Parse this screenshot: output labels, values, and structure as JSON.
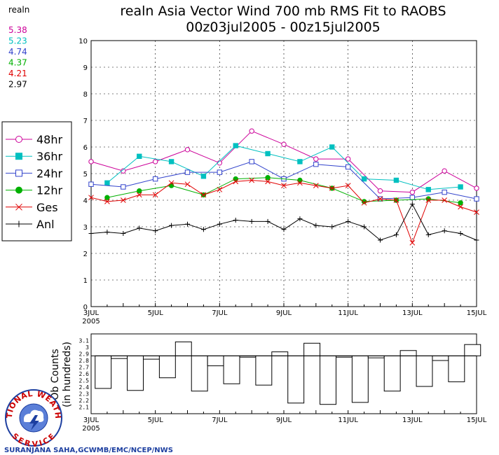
{
  "title": {
    "line1": "realn Asia Vector Wind 700 mb RMS Fit to RAOBS",
    "line2": "00z03jul2005 - 00z15jul2005"
  },
  "stats": {
    "header": "realn",
    "values": [
      {
        "text": "5.38",
        "color": "#cc0099"
      },
      {
        "text": "5.23",
        "color": "#00c0c0"
      },
      {
        "text": "4.74",
        "color": "#3344cc"
      },
      {
        "text": "4.37",
        "color": "#00b000"
      },
      {
        "text": "4.21",
        "color": "#e00000"
      },
      {
        "text": "2.97",
        "color": "#000000"
      }
    ]
  },
  "legend": [
    {
      "label": "48hr",
      "color": "#cc0099",
      "marker": "circle-open"
    },
    {
      "label": "36hr",
      "color": "#00c0c0",
      "marker": "square-filled"
    },
    {
      "label": "24hr",
      "color": "#3344cc",
      "marker": "square-open"
    },
    {
      "label": "12hr",
      "color": "#00b000",
      "marker": "circle-filled"
    },
    {
      "label": "Ges",
      "color": "#e00000",
      "marker": "x"
    },
    {
      "label": "Anl",
      "color": "#000000",
      "marker": "plus"
    }
  ],
  "credit": "SURANJANA SAHA,GCWMB/EMC/NCEP/NWS",
  "logo": {
    "top_text": "NATIONAL WEATHER",
    "bottom_text": "SERVICE"
  },
  "lower_panel": {
    "ylabel_lines": [
      "Ob Counts",
      "(in hundreds)"
    ]
  },
  "chart_data": [
    {
      "type": "line",
      "xlim": [
        0,
        12
      ],
      "ylim": [
        0,
        10
      ],
      "yticks": [
        0,
        1,
        2,
        3,
        4,
        5,
        6,
        7,
        8,
        9,
        10
      ],
      "xtick_labels": [
        {
          "x": 0,
          "label": "3JUL",
          "sub": "2005"
        },
        {
          "x": 2,
          "label": "5JUL"
        },
        {
          "x": 4,
          "label": "7JUL"
        },
        {
          "x": 6,
          "label": "9JUL"
        },
        {
          "x": 8,
          "label": "11JUL"
        },
        {
          "x": 10,
          "label": "13JUL"
        },
        {
          "x": 12,
          "label": "15JUL"
        }
      ],
      "grid": true,
      "series": [
        {
          "name": "48hr",
          "color": "#cc0099",
          "marker": "circle-open",
          "points": [
            [
              0,
              5.45
            ],
            [
              1,
              5.1
            ],
            [
              2,
              5.45
            ],
            [
              3,
              5.9
            ],
            [
              4,
              5.4
            ],
            [
              5,
              6.6
            ],
            [
              6,
              6.1
            ],
            [
              7,
              5.55
            ],
            [
              8,
              5.55
            ],
            [
              9,
              4.35
            ],
            [
              10,
              4.3
            ],
            [
              11,
              5.1
            ],
            [
              12,
              4.45
            ]
          ]
        },
        {
          "name": "36hr",
          "color": "#00c0c0",
          "marker": "square-filled",
          "points": [
            [
              0.5,
              4.65
            ],
            [
              1.5,
              5.65
            ],
            [
              2.5,
              5.45
            ],
            [
              3.5,
              4.9
            ],
            [
              4.5,
              6.05
            ],
            [
              5.5,
              5.75
            ],
            [
              6.5,
              5.45
            ],
            [
              7.5,
              6.0
            ],
            [
              8.5,
              4.8
            ],
            [
              9.5,
              4.75
            ],
            [
              10.5,
              4.4
            ],
            [
              11.5,
              4.5
            ]
          ]
        },
        {
          "name": "24hr",
          "color": "#3344cc",
          "marker": "square-open",
          "points": [
            [
              0,
              4.6
            ],
            [
              1,
              4.5
            ],
            [
              2,
              4.8
            ],
            [
              3,
              5.05
            ],
            [
              4,
              5.05
            ],
            [
              5,
              5.45
            ],
            [
              6,
              4.8
            ],
            [
              7,
              5.35
            ],
            [
              8,
              5.25
            ],
            [
              9,
              4.05
            ],
            [
              10,
              4.1
            ],
            [
              11,
              4.3
            ],
            [
              12,
              4.05
            ]
          ]
        },
        {
          "name": "12hr",
          "color": "#00b000",
          "marker": "circle-filled",
          "points": [
            [
              0.5,
              4.1
            ],
            [
              1.5,
              4.35
            ],
            [
              2.5,
              4.55
            ],
            [
              3.5,
              4.2
            ],
            [
              4.5,
              4.8
            ],
            [
              5.5,
              4.85
            ],
            [
              6.5,
              4.75
            ],
            [
              7.5,
              4.45
            ],
            [
              8.5,
              3.95
            ],
            [
              9.5,
              4.0
            ],
            [
              10.5,
              4.05
            ],
            [
              11.5,
              3.9
            ]
          ]
        },
        {
          "name": "Ges",
          "color": "#e00000",
          "marker": "x",
          "points": [
            [
              0,
              4.1
            ],
            [
              0.5,
              3.95
            ],
            [
              1,
              4.0
            ],
            [
              1.5,
              4.2
            ],
            [
              2,
              4.2
            ],
            [
              2.5,
              4.65
            ],
            [
              3,
              4.6
            ],
            [
              3.5,
              4.2
            ],
            [
              4,
              4.4
            ],
            [
              4.5,
              4.7
            ],
            [
              5,
              4.75
            ],
            [
              5.5,
              4.7
            ],
            [
              6,
              4.55
            ],
            [
              6.5,
              4.65
            ],
            [
              7,
              4.55
            ],
            [
              7.5,
              4.45
            ],
            [
              8,
              4.55
            ],
            [
              8.5,
              3.9
            ],
            [
              9,
              4.05
            ],
            [
              9.5,
              4.0
            ],
            [
              10,
              2.4
            ],
            [
              10.5,
              4.0
            ],
            [
              11,
              4.0
            ],
            [
              11.5,
              3.75
            ],
            [
              12,
              3.55
            ]
          ]
        },
        {
          "name": "Anl",
          "color": "#000000",
          "marker": "plus",
          "points": [
            [
              0,
              2.75
            ],
            [
              0.5,
              2.8
            ],
            [
              1,
              2.75
            ],
            [
              1.5,
              2.95
            ],
            [
              2,
              2.85
            ],
            [
              2.5,
              3.05
            ],
            [
              3,
              3.1
            ],
            [
              3.5,
              2.9
            ],
            [
              4,
              3.1
            ],
            [
              4.5,
              3.25
            ],
            [
              5,
              3.2
            ],
            [
              5.5,
              3.2
            ],
            [
              6,
              2.9
            ],
            [
              6.5,
              3.3
            ],
            [
              7,
              3.05
            ],
            [
              7.5,
              3.0
            ],
            [
              8,
              3.2
            ],
            [
              8.5,
              3.0
            ],
            [
              9,
              2.5
            ],
            [
              9.5,
              2.7
            ],
            [
              10,
              3.85
            ],
            [
              10.5,
              2.7
            ],
            [
              11,
              2.85
            ],
            [
              11.5,
              2.75
            ],
            [
              12,
              2.5
            ]
          ]
        }
      ]
    },
    {
      "type": "bar",
      "xlim": [
        0,
        12
      ],
      "ylim": [
        2.0,
        3.2
      ],
      "yticks": [
        2.1,
        2.2,
        2.3,
        2.4,
        2.5,
        2.6,
        2.7,
        2.8,
        2.9,
        3.0,
        3.1
      ],
      "xtick_labels": [
        {
          "x": 0,
          "label": "3JUL",
          "sub": "2005"
        },
        {
          "x": 2,
          "label": "5JUL"
        },
        {
          "x": 4,
          "label": "7JUL"
        },
        {
          "x": 6,
          "label": "9JUL"
        },
        {
          "x": 8,
          "label": "11JUL"
        },
        {
          "x": 10,
          "label": "13JUL"
        },
        {
          "x": 12,
          "label": "15JUL"
        }
      ],
      "reference_line": 2.87,
      "bar_start": 0.125,
      "bar_width": 0.5,
      "values": [
        2.38,
        2.83,
        2.35,
        2.82,
        2.54,
        3.08,
        2.34,
        2.72,
        2.45,
        2.85,
        2.43,
        2.93,
        2.16,
        3.06,
        2.14,
        2.85,
        2.17,
        2.84,
        2.34,
        2.95,
        2.41,
        2.8,
        2.48,
        3.04
      ]
    }
  ]
}
